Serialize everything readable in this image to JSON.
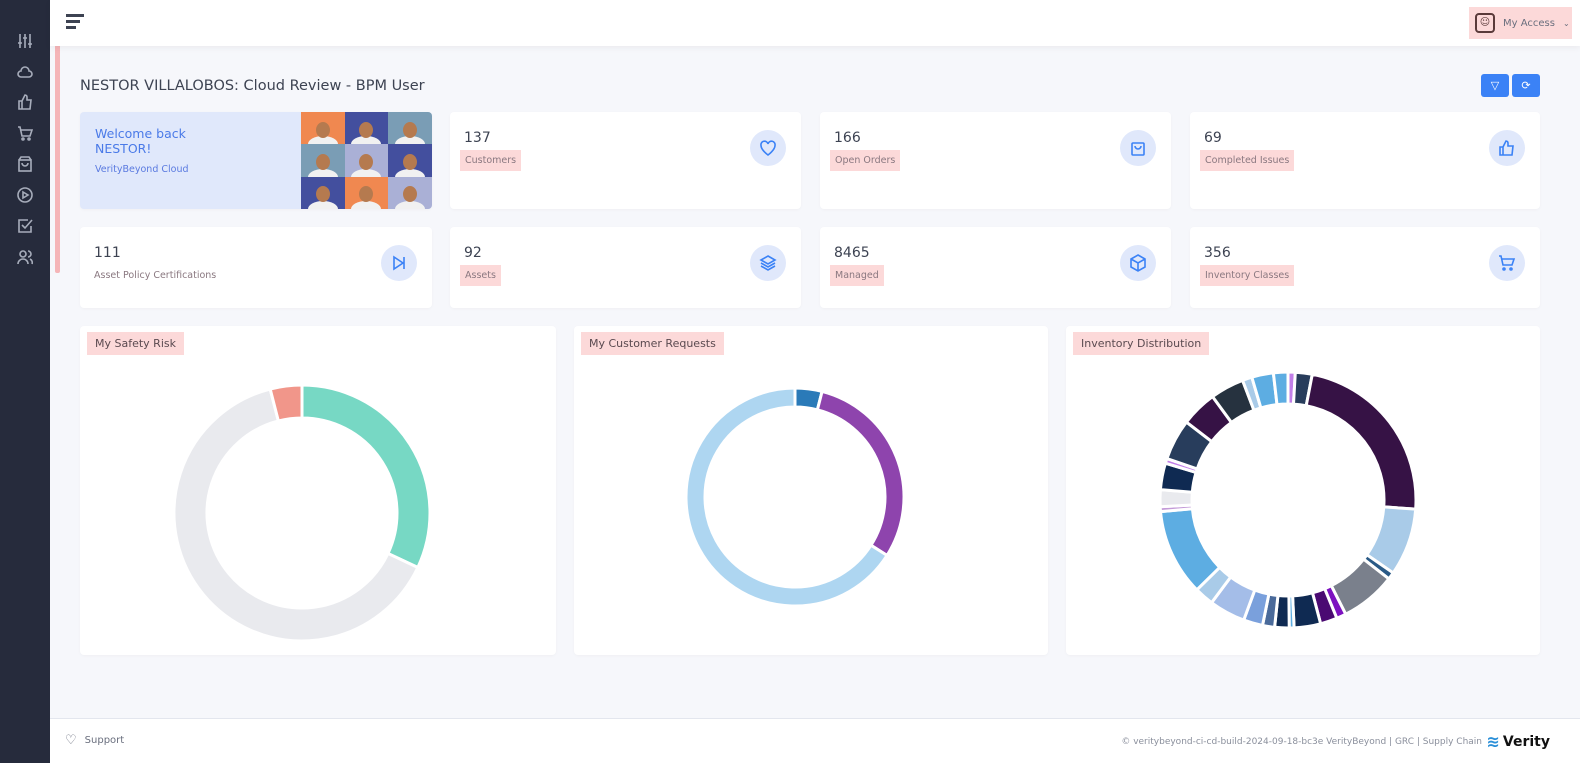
{
  "header": {
    "access_label": "My Access"
  },
  "sidebar": {
    "items": [
      {
        "icon": "sliders-icon"
      },
      {
        "icon": "cloud-icon"
      },
      {
        "icon": "thumbs-up-icon"
      },
      {
        "icon": "cart-icon"
      },
      {
        "icon": "shopping-bag-icon"
      },
      {
        "icon": "play-circle-icon"
      },
      {
        "icon": "check-square-icon"
      },
      {
        "icon": "users-icon"
      }
    ]
  },
  "page": {
    "title": "NESTOR VILLALOBOS: Cloud Review - BPM User"
  },
  "welcome": {
    "line1": "Welcome back",
    "line2": "NESTOR!",
    "subtitle": "VerityBeyond Cloud"
  },
  "stats": [
    {
      "value": "137",
      "label": "Customers",
      "icon": "heart-icon"
    },
    {
      "value": "166",
      "label": "Open Orders",
      "icon": "shopping-bag-icon"
    },
    {
      "value": "69",
      "label": "Completed Issues",
      "icon": "thumbs-up-icon"
    },
    {
      "value": "111",
      "label": "Asset Policy Certifications",
      "icon": "skip-forward-icon"
    },
    {
      "value": "92",
      "label": "Assets",
      "icon": "layers-icon"
    },
    {
      "value": "8465",
      "label": "Managed",
      "icon": "box-icon"
    },
    {
      "value": "356",
      "label": "Inventory Classes",
      "icon": "cart-icon"
    }
  ],
  "chart_data": [
    {
      "type": "pie",
      "title": "My Safety Risk",
      "donut": true,
      "values": [
        32,
        64,
        4
      ],
      "colors": [
        "#77d8c4",
        "#e9eaee",
        "#f1968a"
      ]
    },
    {
      "type": "pie",
      "title": "My Customer Requests",
      "donut": true,
      "values": [
        4,
        30,
        66
      ],
      "colors": [
        "#2a7ab8",
        "#8e44ad",
        "#aed6f1"
      ]
    },
    {
      "type": "pie",
      "title": "Inventory Distribution",
      "donut": true,
      "values": [
        3,
        7,
        76,
        28,
        3,
        23,
        4,
        7,
        11,
        2,
        6,
        5,
        8,
        15,
        8,
        36,
        2,
        7,
        11,
        2,
        17,
        15,
        14,
        4,
        9,
        6
      ],
      "colors": [
        "#c27fe8",
        "#283d5c",
        "#361245",
        "#a9cbe8",
        "#2a5a86",
        "#7a808c",
        "#7d12c0",
        "#4a0a72",
        "#0f2a52",
        "#5dade2",
        "#0f2a52",
        "#4a6a9a",
        "#7aa0dc",
        "#a4bde8",
        "#a9cbe8",
        "#5dade2",
        "#c39ad8",
        "#e9eaee",
        "#0f2a52",
        "#c27fe8",
        "#283d5c",
        "#361245",
        "#26323f",
        "#a9cbe8",
        "#5dade2",
        "#5dade2"
      ]
    }
  ],
  "footer": {
    "support": "Support",
    "copyright": "© veritybeyond-ci-cd-build-2024-09-18-bc3e VerityBeyond | GRC | Supply Chain",
    "logo": "Verity"
  }
}
